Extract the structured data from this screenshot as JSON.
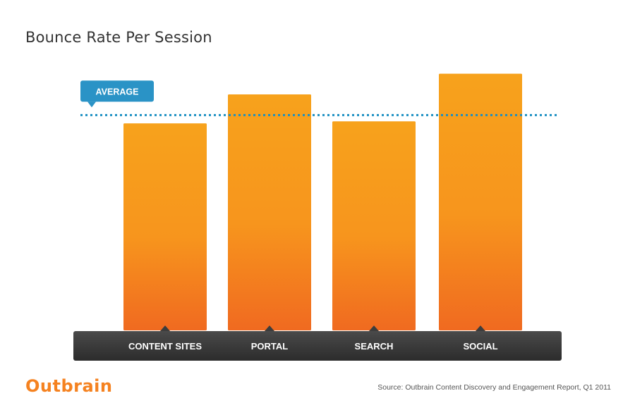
{
  "title": "Bounce Rate Per Session",
  "logo_text": "Outbrain",
  "source": "Source: Outbrain Content Discovery and Engagement Report, Q1 2011",
  "colors": {
    "bar_top": "#f7a21c",
    "bar_bottom": "#f06a20",
    "avg_line": "#1a8fc2",
    "avg_badge": "#2a93c6",
    "axis_band": "#3a3a3a",
    "brand": "#f58220"
  },
  "chart_data": {
    "type": "bar",
    "categories": [
      "CONTENT SITES",
      "PORTAL",
      "SEARCH",
      "SOCIAL"
    ],
    "values": [
      1.0,
      1.14,
      1.01,
      1.24
    ],
    "average": 1.04,
    "average_label": "AVERAGE",
    "ylim": [
      0,
      1.3
    ],
    "grid": false,
    "y_axis_visible": false
  }
}
